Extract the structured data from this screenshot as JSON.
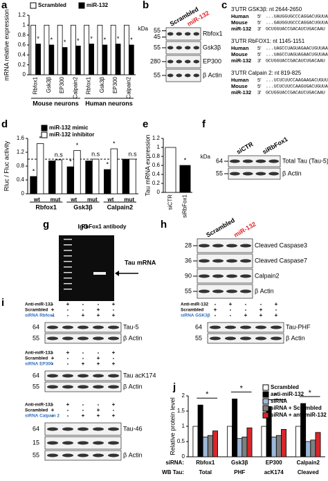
{
  "chart_data": [
    {
      "panel": "a",
      "type": "bar",
      "ylabel": "mRNA relative expression",
      "categories": [
        "Rbfox1",
        "Gsk3β",
        "EP300",
        "Calpain2",
        "Rbfox1",
        "Gsk3β",
        "EP300",
        "Calpain2"
      ],
      "group_labels": [
        "Mouse neurons",
        "Human neurons"
      ],
      "series": [
        {
          "name": "Scrambled",
          "color": "#ffffff",
          "values": [
            1,
            1,
            1,
            1,
            1,
            1,
            1,
            1
          ]
        },
        {
          "name": "miR-132",
          "color": "#000000",
          "values": [
            0.62,
            0.6,
            0.55,
            0.58,
            0.62,
            0.6,
            0.62,
            0.6
          ],
          "annotations": [
            "*",
            "*",
            "*",
            "*",
            "*",
            "*",
            "*",
            "*"
          ]
        }
      ],
      "ylim": [
        0,
        1.2
      ],
      "yticks": [
        0,
        0.2,
        0.4,
        0.6,
        0.8,
        1,
        1.2
      ]
    },
    {
      "panel": "d",
      "type": "bar",
      "ylabel": "Rluc / Fluc activity",
      "categories": [
        "wt",
        "mut",
        "wt",
        "mut",
        "wt",
        "mut"
      ],
      "group_labels": [
        "Rbfox1",
        "Gsk3β",
        "Calpain2"
      ],
      "series": [
        {
          "name": "miR-132 mimic",
          "color": "#000000",
          "values": [
            0.5,
            0.95,
            0.78,
            0.95,
            0.7,
            1.0
          ],
          "annotations": [
            "*",
            null,
            "*",
            null,
            "*",
            null
          ]
        },
        {
          "name": "miR-132 inhibitor",
          "color": "#ffffff",
          "values": [
            1.45,
            0.98,
            1.25,
            1.0,
            1.3,
            1.0
          ],
          "annotations": [
            "*",
            "n.s",
            "*",
            "n.s",
            "*",
            "n.s"
          ]
        }
      ],
      "reference_line": 1,
      "ylim": [
        0,
        1.6
      ],
      "yticks": [
        0,
        0.4,
        0.8,
        1.2,
        1.6
      ]
    },
    {
      "panel": "e",
      "type": "bar",
      "ylabel": "Tau mRNA expression",
      "categories": [
        "siCTR",
        "siRbFox1"
      ],
      "series": [
        {
          "colors": [
            "#ffffff",
            "#000000"
          ],
          "values": [
            1,
            0.6
          ],
          "annotations": [
            null,
            "*"
          ]
        }
      ],
      "ylim": [
        0,
        1.2
      ],
      "yticks": [
        0,
        0.2,
        0.4,
        0.6,
        0.8,
        1,
        1.2
      ]
    },
    {
      "panel": "j",
      "type": "bar",
      "ylabel": "Relative protein level",
      "category_prefix": "siRNA:",
      "categories": [
        "Rbfox1",
        "Gsk3β",
        "EP300",
        "Calpain2"
      ],
      "second_row_prefix": "WB Tau:",
      "second_row": [
        "Total",
        "PHF",
        "acK174",
        "Cleaved"
      ],
      "series": [
        {
          "name": "Scrambled",
          "color": "#ffffff",
          "values": [
            1,
            1,
            1,
            1
          ]
        },
        {
          "name": "anti-miR-132",
          "color": "#000000",
          "values": [
            1.7,
            1.9,
            1.65,
            1.75
          ]
        },
        {
          "name": "siRNA",
          "color": "#9db7d8",
          "values": [
            0.65,
            0.6,
            0.65,
            0.5
          ]
        },
        {
          "name": "siRNA + Scrambled",
          "color": "#7f7f7f",
          "values": [
            0.7,
            0.65,
            0.7,
            0.55
          ]
        },
        {
          "name": "siRNA + anti-miR-132",
          "color": "#d9262b",
          "values": [
            0.85,
            0.95,
            0.9,
            0.8
          ]
        }
      ],
      "comparison_labels": [
        "*",
        "*",
        "*",
        "*"
      ],
      "ylim": [
        0,
        2
      ],
      "yticks": [
        0,
        0.5,
        1,
        1.5,
        2
      ]
    }
  ],
  "blots": {
    "b": {
      "panel": "b",
      "unit": "kDa",
      "lanes": [
        "Scrambled",
        "miR-132"
      ],
      "rows": [
        {
          "kda": [
            "55",
            "45"
          ],
          "label": "Rbfox1"
        },
        {
          "kda": [
            "55"
          ],
          "label": "Gsk3β"
        },
        {
          "kda": [
            "280"
          ],
          "label": "EP300"
        },
        {
          "kda": [
            "55"
          ],
          "label": "β Actin"
        }
      ]
    },
    "f": {
      "panel": "f",
      "unit": "kDa",
      "lanes": [
        "siCTR",
        "siRbFox1"
      ],
      "rows": [
        {
          "kda": [
            "64"
          ],
          "label": "Total Tau (Tau-5)"
        },
        {
          "kda": [
            "55"
          ],
          "label": "β Actin"
        }
      ]
    },
    "h": {
      "panel": "h",
      "lanes": [
        "Scrambled",
        "miR-132"
      ],
      "rows": [
        {
          "kda": [
            "28"
          ],
          "label": "Cleaved Caspase3"
        },
        {
          "kda": [
            "36"
          ],
          "label": "Cleaved Caspase7"
        },
        {
          "kda": [
            "90"
          ],
          "label": "Calpain2"
        },
        {
          "kda": [
            "55"
          ],
          "label": "β Actin"
        }
      ]
    }
  },
  "sequences": {
    "panel": "c",
    "blocks": [
      {
        "title": "3'UTR GSK3β: nt 2644-2650",
        "lines": [
          [
            "Human",
            "5'",
            "...UAUGGUGCCCAGGACUGUUAA"
          ],
          [
            "Mouse",
            "5'",
            "...GAUGGUGCCCAGGACUGUUAA"
          ],
          [
            "miR-132",
            "3'",
            "GCUGGUACCGACAUCUGACAAU"
          ]
        ]
      },
      {
        "title": "3'UTR RbFOX1: nt 1145-1151",
        "lines": [
          [
            "Human",
            "5'",
            "...UAGCCUAGUAGAACUGUUAAG"
          ],
          [
            "Mouse",
            "5'",
            "...UAGCCUAGUAGAACUGUUAAG"
          ],
          [
            "miR-132",
            "3'",
            "GCUGGUACCGACAUCUGACAAU"
          ]
        ]
      },
      {
        "title": "3'UTR Calpain 2: nt 819-825",
        "lines": [
          [
            "Human",
            "5'",
            "...UCUCUUCCAAGAAGACUGUUA"
          ],
          [
            "Mouse",
            "5'",
            "...UCUCUUCCAAGUGACUGUUAG"
          ],
          [
            "miR-132",
            "3'",
            "GCUGGUACCGACAUCUGACAAU"
          ]
        ]
      }
    ]
  },
  "gel": {
    "panel": "g",
    "lanes": [
      "IgG",
      "RbFox1 antibody"
    ],
    "band": "Tau mRNA"
  },
  "panel_i": {
    "panel": "i",
    "blots": [
      {
        "conditions": [
          {
            "name": "Anti-miR-132",
            "signs": [
              "-",
              "+",
              "-",
              "-",
              "+"
            ]
          },
          {
            "name": "Scrambled",
            "signs": [
              "+",
              "-",
              "-",
              "+",
              "-"
            ]
          },
          {
            "name": "siRNA Rbfox1",
            "signs": [
              "-",
              "-",
              "+",
              "+",
              "+"
            ]
          }
        ],
        "rows": [
          {
            "kda": "64",
            "label": "Tau-5"
          },
          {
            "kda": "55",
            "label": "β Actin"
          }
        ]
      },
      {
        "conditions": [
          {
            "name": "Anti-miR-132",
            "signs": [
              "-",
              "+",
              "-",
              "-",
              "+"
            ]
          },
          {
            "name": "Scrambled",
            "signs": [
              "+",
              "-",
              "-",
              "+",
              "-"
            ]
          },
          {
            "name": "siRNA EP300",
            "signs": [
              "-",
              "-",
              "+",
              "+",
              "+"
            ]
          }
        ],
        "rows": [
          {
            "kda": "64",
            "label": "Tau acK174"
          },
          {
            "kda": "55",
            "label": "β Actin"
          }
        ]
      },
      {
        "conditions": [
          {
            "name": "Anti-miR-132",
            "signs": [
              "-",
              "+",
              "-",
              "-",
              "+"
            ]
          },
          {
            "name": "Scrambled",
            "signs": [
              "+",
              "-",
              "-",
              "+",
              "-"
            ]
          },
          {
            "name": "siRNA Calpain 2",
            "signs": [
              "-",
              "-",
              "+",
              "+",
              "+"
            ]
          }
        ],
        "rows": [
          {
            "kda": "64",
            "label": "Tau-46"
          },
          {
            "kda": "15",
            "label": ""
          },
          {
            "kda": "55",
            "label": "β Actin"
          }
        ]
      },
      {
        "conditions": [
          {
            "name": "Anti-miR-132",
            "signs": [
              "-",
              "+",
              "-",
              "-",
              "+"
            ]
          },
          {
            "name": "Scrambled",
            "signs": [
              "+",
              "-",
              "-",
              "+",
              "-"
            ]
          },
          {
            "name": "siRNA GSK3β",
            "signs": [
              "-",
              "-",
              "+",
              "+",
              "+"
            ]
          }
        ],
        "rows": [
          {
            "kda": "64",
            "label": "Tau-PHF"
          },
          {
            "kda": "55",
            "label": "β Actin"
          }
        ]
      }
    ]
  }
}
